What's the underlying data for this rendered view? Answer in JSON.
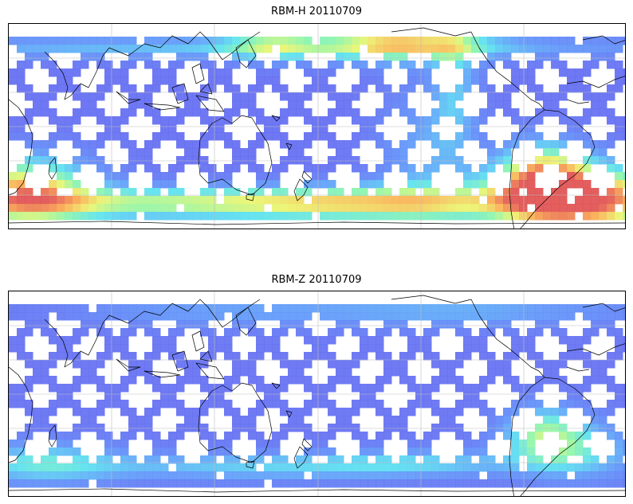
{
  "panels": [
    {
      "id": "top",
      "title": "RBM-H 20110709",
      "colormap": "jet-like",
      "hotspots": [
        {
          "label": "southern-ocean-west",
          "intensity": "high"
        },
        {
          "label": "south-atlantic",
          "intensity": "very-high"
        },
        {
          "label": "north-pacific",
          "intensity": "high"
        }
      ]
    },
    {
      "id": "bottom",
      "title": "RBM-Z 20110709",
      "colormap": "jet-like",
      "hotspots": [
        {
          "label": "south-atlantic",
          "intensity": "medium-high"
        },
        {
          "label": "southern-ocean",
          "intensity": "medium"
        }
      ]
    }
  ],
  "map": {
    "projection": "plate-carree-centered-pacific",
    "gridlines": true,
    "coastlines": true,
    "swath_color": "#6a6cf0"
  }
}
